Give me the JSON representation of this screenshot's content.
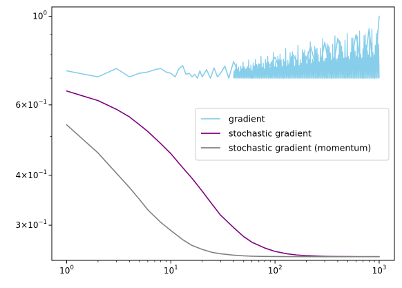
{
  "chart_data": {
    "type": "line",
    "title": "",
    "xlabel": "",
    "ylabel": "",
    "xscale": "log",
    "yscale": "log",
    "xlim": [
      0.72,
      1400
    ],
    "ylim": [
      0.245,
      1.055
    ],
    "grid": false,
    "legend_placement": "center-right",
    "x_ticks": [
      {
        "value": 1,
        "base": "10",
        "exp": "0"
      },
      {
        "value": 10,
        "base": "10",
        "exp": "1"
      },
      {
        "value": 100,
        "base": "10",
        "exp": "2"
      },
      {
        "value": 1000,
        "base": "10",
        "exp": "3"
      }
    ],
    "y_ticks": [
      {
        "value": 1.0,
        "mant": "",
        "base": "10",
        "exp": "0"
      },
      {
        "value": 0.6,
        "mant": "6",
        "base": "10",
        "exp": "−1"
      },
      {
        "value": 0.4,
        "mant": "4",
        "base": "10",
        "exp": "−1"
      },
      {
        "value": 0.3,
        "mant": "3",
        "base": "10",
        "exp": "−1"
      }
    ],
    "series": [
      {
        "name": "gradient",
        "color": "#87ceeb",
        "x": [
          1,
          2,
          3,
          4,
          5,
          6,
          7,
          8,
          9,
          10,
          11,
          12,
          13,
          14,
          15,
          16,
          17,
          18,
          19,
          20,
          22,
          24,
          26,
          28,
          30,
          33,
          36,
          40,
          45,
          50,
          60,
          70,
          80,
          100,
          120,
          150,
          180,
          220,
          260,
          300,
          350,
          400,
          500,
          600,
          700,
          800,
          900,
          1000
        ],
        "y": [
          0.73,
          0.705,
          0.74,
          0.705,
          0.72,
          0.725,
          0.735,
          0.74,
          0.725,
          0.72,
          0.705,
          0.74,
          0.752,
          0.715,
          0.72,
          0.705,
          0.715,
          0.7,
          0.73,
          0.705,
          0.735,
          0.7,
          0.742,
          0.705,
          0.72,
          0.75,
          0.7,
          0.77,
          0.72,
          0.745,
          0.7,
          0.76,
          0.72,
          0.79,
          0.7,
          0.8,
          0.72,
          0.84,
          0.71,
          0.86,
          0.7,
          0.88,
          0.705,
          0.9,
          0.7,
          0.93,
          0.7,
          1.0
        ],
        "band": {
          "from_x": 40,
          "low": 0.7,
          "high_start": 0.76,
          "high_end": 0.96
        }
      },
      {
        "name": "stochastic gradient",
        "color": "#800080",
        "x": [
          1,
          2,
          3,
          4,
          5,
          6,
          8,
          10,
          13,
          16,
          20,
          25,
          30,
          40,
          50,
          60,
          80,
          100,
          130,
          160,
          200,
          300,
          400,
          600,
          1000
        ],
        "y": [
          0.65,
          0.615,
          0.585,
          0.56,
          0.535,
          0.515,
          0.48,
          0.453,
          0.418,
          0.393,
          0.365,
          0.338,
          0.318,
          0.296,
          0.281,
          0.272,
          0.263,
          0.258,
          0.2545,
          0.2528,
          0.2518,
          0.2508,
          0.2505,
          0.2503,
          0.2502
        ]
      },
      {
        "name": "stochastic gradient (momentum)",
        "color": "#808080",
        "x": [
          1,
          2,
          3,
          4,
          5,
          6,
          8,
          10,
          13,
          16,
          20,
          25,
          30,
          40,
          50,
          60,
          80,
          100,
          130,
          160,
          200,
          300,
          400,
          600,
          1000
        ],
        "y": [
          0.535,
          0.455,
          0.405,
          0.373,
          0.348,
          0.328,
          0.305,
          0.291,
          0.276,
          0.267,
          0.261,
          0.2565,
          0.2545,
          0.2525,
          0.2515,
          0.251,
          0.2506,
          0.2505,
          0.2504,
          0.2503,
          0.2503,
          0.2502,
          0.2502,
          0.2502,
          0.2502
        ]
      }
    ]
  }
}
